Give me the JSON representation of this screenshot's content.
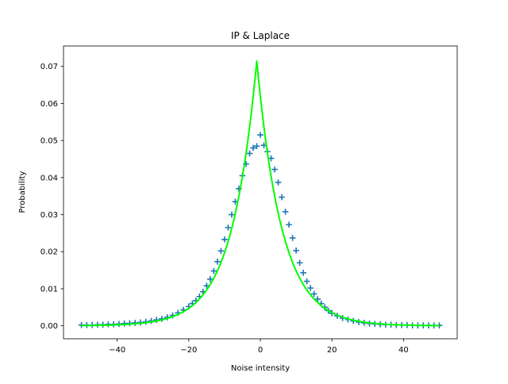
{
  "chart_data": {
    "type": "scatter",
    "title": "IP & Laplace",
    "xlabel": "Noise intensity",
    "ylabel": "Probability",
    "xlim": [
      -55,
      55
    ],
    "ylim": [
      -0.0035,
      0.0755
    ],
    "xticks": [
      -40,
      -20,
      0,
      20,
      40
    ],
    "yticks": [
      0.0,
      0.01,
      0.02,
      0.03,
      0.04,
      0.05,
      0.06,
      0.07
    ],
    "ytick_labels": [
      "0.00",
      "0.01",
      "0.02",
      "0.03",
      "0.04",
      "0.05",
      "0.06",
      "0.07"
    ],
    "grid": false,
    "series": [
      {
        "kind": "scatter",
        "marker": "plus",
        "color": "#1f77b4",
        "x": [
          -50,
          -48.5,
          -47,
          -45.5,
          -44,
          -42.5,
          -41,
          -39.5,
          -38,
          -36.5,
          -35,
          -33.5,
          -32,
          -30.5,
          -29,
          -27.5,
          -26,
          -24.5,
          -23,
          -21.5,
          -20,
          -19,
          -18,
          -17,
          -16,
          -15,
          -14,
          -13,
          -12,
          -11,
          -10,
          -9,
          -8,
          -7,
          -6,
          -5,
          -4,
          -3,
          -2,
          -1,
          0,
          1,
          2,
          3,
          4,
          5,
          6,
          7,
          8,
          9,
          10,
          11,
          12,
          13,
          14,
          15,
          16,
          17,
          18,
          19,
          20,
          21.5,
          23,
          24.5,
          26,
          27.5,
          29,
          30.5,
          32,
          33.5,
          35,
          36.5,
          38,
          39.5,
          41,
          42.5,
          44,
          45.5,
          47,
          48.5,
          50
        ],
        "y": [
          0.0002,
          0.0002,
          0.0002,
          0.0003,
          0.0003,
          0.0004,
          0.0004,
          0.0005,
          0.0006,
          0.0007,
          0.0008,
          0.0009,
          0.0011,
          0.0013,
          0.0016,
          0.0019,
          0.0023,
          0.0028,
          0.0035,
          0.0043,
          0.0052,
          0.006,
          0.0068,
          0.0079,
          0.0092,
          0.0108,
          0.0126,
          0.0148,
          0.0173,
          0.0202,
          0.0233,
          0.0265,
          0.03,
          0.0335,
          0.037,
          0.0405,
          0.0437,
          0.0465,
          0.048,
          0.0485,
          0.0515,
          0.0487,
          0.047,
          0.0452,
          0.0422,
          0.0387,
          0.0347,
          0.0308,
          0.0273,
          0.0237,
          0.0203,
          0.017,
          0.0143,
          0.012,
          0.0102,
          0.0086,
          0.0072,
          0.006,
          0.005,
          0.0041,
          0.0034,
          0.0027,
          0.0021,
          0.0017,
          0.0013,
          0.001,
          0.0008,
          0.0006,
          0.0005,
          0.0004,
          0.0003,
          0.0003,
          0.0002,
          0.0002,
          0.0002,
          0.0001,
          0.0001,
          0.0001,
          0.0001,
          0.0001,
          0.0001
        ]
      },
      {
        "kind": "line",
        "color": "#00ff00",
        "distribution": "laplace",
        "loc": -1,
        "scale": 7,
        "x_range": [
          -50,
          50
        ]
      }
    ]
  }
}
